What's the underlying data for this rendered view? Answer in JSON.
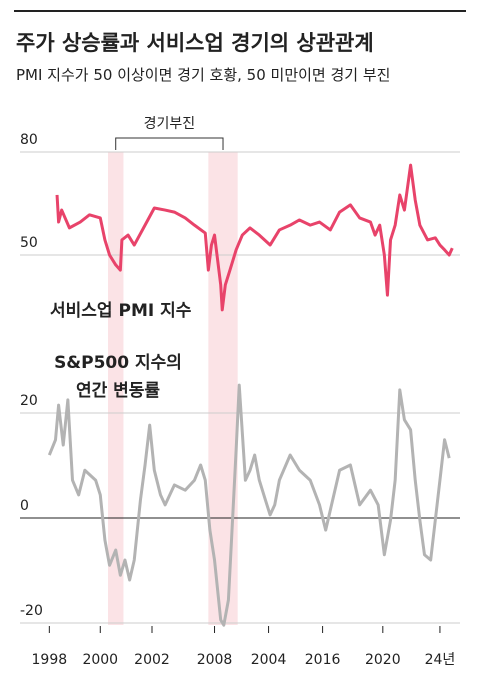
{
  "title": "주가 상승률과 서비스업 경기의 상관관계",
  "subtitle": "PMI 지수가 50 이상이면 경기 호황, 50 미만이면 경기 부진",
  "chart_data": [
    {
      "type": "line",
      "series_label": "서비스업 PMI 지수",
      "color": "#e8436a",
      "annotation": "경기부진",
      "shaded_spans": [
        [
          2002.2,
          2003.2
        ],
        [
          2008.7,
          2010.6
        ]
      ],
      "x": [
        1998.9,
        1999.0,
        1999.2,
        1999.7,
        2000.4,
        2001.0,
        2001.7,
        2002.0,
        2002.3,
        2002.7,
        2003.0,
        2003.1,
        2003.5,
        2003.9,
        2004.6,
        2005.2,
        2005.9,
        2006.5,
        2007.2,
        2007.8,
        2008.5,
        2008.7,
        2008.9,
        2009.1,
        2009.5,
        2009.6,
        2009.8,
        2010.1,
        2010.5,
        2010.9,
        2011.4,
        2012.0,
        2012.7,
        2013.3,
        2014.0,
        2014.6,
        2015.3,
        2015.9,
        2016.6,
        2017.2,
        2017.9,
        2018.5,
        2019.2,
        2019.5,
        2019.8,
        2020.1,
        2020.3,
        2020.5,
        2020.8,
        2021.1,
        2021.4,
        2021.8,
        2022.1,
        2022.4,
        2022.9,
        2023.4,
        2023.7,
        2024.0,
        2024.3,
        2024.5
      ],
      "values": [
        67.5,
        59.6,
        63.1,
        57.9,
        59.6,
        61.7,
        60.8,
        54.4,
        50,
        47.1,
        45.6,
        54.4,
        55.8,
        52.9,
        58.7,
        63.7,
        63.1,
        62.5,
        60.8,
        58.7,
        56.4,
        45.6,
        52.9,
        55.8,
        41.3,
        34,
        41.3,
        45.6,
        51.5,
        55.8,
        57.9,
        55.8,
        52.9,
        57.3,
        58.7,
        60.2,
        58.7,
        59.6,
        57.3,
        62.5,
        64.6,
        60.8,
        59.6,
        55.8,
        58.7,
        50,
        38.3,
        54.4,
        58.7,
        67.5,
        63.1,
        76.2,
        66,
        58.7,
        54.4,
        55,
        52.9,
        51.5,
        50,
        52
      ],
      "xlim": [
        1996.5,
        2025
      ],
      "ylim": [
        30,
        82
      ],
      "yticks": [
        80,
        50
      ]
    },
    {
      "type": "line",
      "series_label": [
        "S&P500 지수의",
        "연간 변동률"
      ],
      "color": "#b3b3b3",
      "x": [
        1998.4,
        1998.8,
        1999.0,
        1999.3,
        1999.6,
        1999.9,
        2000.3,
        2000.7,
        2001.4,
        2001.7,
        2002.0,
        2002.3,
        2002.7,
        2003.0,
        2003.3,
        2003.6,
        2003.9,
        2004.3,
        2004.6,
        2004.9,
        2005.2,
        2005.6,
        2005.9,
        2006.5,
        2007.2,
        2007.8,
        2008.2,
        2008.5,
        2008.8,
        2009.1,
        2009.5,
        2009.7,
        2010.0,
        2010.2,
        2010.5,
        2010.7,
        2011.1,
        2011.4,
        2011.7,
        2012.0,
        2012.4,
        2012.7,
        2013.0,
        2013.3,
        2014.0,
        2014.6,
        2015.3,
        2015.9,
        2016.3,
        2016.6,
        2017.2,
        2017.9,
        2018.5,
        2019.2,
        2019.7,
        2020.1,
        2020.5,
        2020.8,
        2021.1,
        2021.4,
        2021.8,
        2022.1,
        2022.4,
        2022.7,
        2023.1,
        2023.4,
        2023.7,
        2024.0,
        2024.3
      ],
      "values": [
        12,
        14.9,
        21.5,
        13.9,
        22.5,
        7.2,
        4.4,
        9.1,
        7.2,
        4.4,
        -4.2,
        -9,
        -6.1,
        -10.9,
        -8,
        -11.8,
        -8,
        3.4,
        10.1,
        17.7,
        9.1,
        4.4,
        2.5,
        6.3,
        5.3,
        7.2,
        10.1,
        7.2,
        -2.3,
        -8,
        -19.4,
        -20.4,
        -15.6,
        -4.2,
        13,
        25.3,
        7.2,
        9.1,
        12,
        7.2,
        3.4,
        0.6,
        2.5,
        7.2,
        12,
        9.1,
        7.2,
        2.5,
        -2.3,
        1.5,
        9.1,
        10.1,
        2.5,
        5.3,
        2.5,
        -7,
        -0.4,
        7.2,
        24.4,
        18.7,
        16.8,
        7.2,
        -0.4,
        -7,
        -8,
        -0.4,
        7.2,
        14.9,
        11.4
      ],
      "xlim": [
        1996.5,
        2025
      ],
      "ylim": [
        -21,
        26
      ],
      "yticks": [
        20,
        0,
        -20
      ],
      "xticks": [
        {
          "value": 1998.4,
          "label": "1998"
        },
        {
          "value": 2001.7,
          "label": "2000"
        },
        {
          "value": 2005.05,
          "label": "2002"
        },
        {
          "value": 2009.1,
          "label": "2008"
        },
        {
          "value": 2012.6,
          "label": "2004"
        },
        {
          "value": 2016.1,
          "label": "2016"
        },
        {
          "value": 2020.0,
          "label": "2020"
        },
        {
          "value": 2023.7,
          "label": "24년"
        }
      ]
    }
  ]
}
